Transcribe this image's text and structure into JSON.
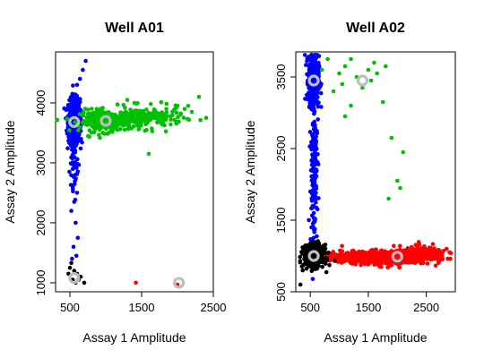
{
  "chart_data": [
    {
      "type": "scatter",
      "title": "Well A01",
      "xlabel": "Assay 1 Amplitude",
      "ylabel": "Assay 2 Amplitude",
      "xlim": [
        300,
        2500
      ],
      "ylim": [
        850,
        4850
      ],
      "xticks": [
        500,
        1500,
        2500
      ],
      "yticks": [
        1000,
        2000,
        3000,
        4000
      ],
      "grid": false,
      "series": [
        {
          "color": "#0000ff",
          "clusters": [
            {
              "cx": 560,
              "cy": 3700,
              "sx": 40,
              "sy": 180,
              "n": 900
            },
            {
              "cx": 560,
              "cy": 3300,
              "sx": 30,
              "sy": 350,
              "n": 70
            }
          ],
          "points": [
            [
              540,
              2600
            ],
            [
              600,
              2500
            ],
            [
              560,
              2350
            ],
            [
              520,
              2200
            ],
            [
              580,
              2000
            ],
            [
              610,
              1750
            ],
            [
              550,
              1600
            ],
            [
              590,
              1450
            ],
            [
              530,
              1400
            ],
            [
              720,
              4700
            ],
            [
              680,
              4550
            ],
            [
              640,
              4400
            ],
            [
              600,
              4300
            ],
            [
              575,
              2800
            ],
            [
              540,
              2900
            ]
          ]
        },
        {
          "color": "#00c000",
          "clusters": [
            {
              "cx": 1000,
              "cy": 3700,
              "sx": 180,
              "sy": 90,
              "n": 240
            },
            {
              "cx": 1550,
              "cy": 3750,
              "sx": 260,
              "sy": 90,
              "n": 180
            }
          ],
          "points": [
            [
              2000,
              3950
            ],
            [
              2100,
              3900
            ],
            [
              2200,
              3850
            ],
            [
              2300,
              4100
            ],
            [
              2400,
              3750
            ],
            [
              1600,
              3150
            ],
            [
              1300,
              4050
            ],
            [
              1400,
              4000
            ],
            [
              2150,
              3950
            ]
          ]
        },
        {
          "color": "#ff0000",
          "clusters": [],
          "points": [
            [
              1420,
              1000
            ],
            [
              2000,
              970
            ]
          ]
        },
        {
          "color": "#000000",
          "clusters": [],
          "points": [
            [
              520,
              1330
            ],
            [
              500,
              1250
            ],
            [
              560,
              1200
            ],
            [
              600,
              1150
            ],
            [
              650,
              1100
            ],
            [
              700,
              1000
            ],
            [
              480,
              1150
            ],
            [
              540,
              1050
            ],
            [
              580,
              1000
            ],
            [
              620,
              1050
            ]
          ]
        }
      ],
      "centroids": [
        [
          560,
          3680
        ],
        [
          1000,
          3700
        ],
        [
          560,
          1080
        ],
        [
          2020,
          1000
        ]
      ],
      "centroid_color": "#bebebe"
    },
    {
      "type": "scatter",
      "title": "Well A02",
      "xlabel": "Assay 1 Amplitude",
      "ylabel": "Assay 2 Amplitude",
      "xlim": [
        250,
        3000
      ],
      "ylim": [
        500,
        3850
      ],
      "xticks": [
        500,
        1500,
        2500
      ],
      "yticks": [
        500,
        1500,
        2500,
        3500
      ],
      "grid": false,
      "series": [
        {
          "color": "#0000ff",
          "clusters": [
            {
              "cx": 560,
              "cy": 3450,
              "sx": 45,
              "sy": 170,
              "n": 450
            },
            {
              "cx": 560,
              "cy": 2300,
              "sx": 30,
              "sy": 600,
              "n": 170
            }
          ],
          "points": [
            [
              520,
              1400
            ],
            [
              580,
              1500
            ],
            [
              560,
              1600
            ],
            [
              540,
              1700
            ],
            [
              600,
              1800
            ],
            [
              500,
              1900
            ]
          ]
        },
        {
          "color": "#00c000",
          "clusters": [],
          "points": [
            [
              700,
              3600
            ],
            [
              800,
              3750
            ],
            [
              900,
              3300
            ],
            [
              1000,
              3550
            ],
            [
              1050,
              3400
            ],
            [
              1100,
              3650
            ],
            [
              1200,
              3750
            ],
            [
              1300,
              3500
            ],
            [
              1400,
              3350
            ],
            [
              1500,
              3600
            ],
            [
              1550,
              3450
            ],
            [
              1600,
              3700
            ],
            [
              1650,
              3550
            ],
            [
              1800,
              3650
            ],
            [
              1900,
              2650
            ],
            [
              1850,
              1800
            ],
            [
              2000,
              2050
            ],
            [
              2050,
              1950
            ],
            [
              2100,
              2450
            ],
            [
              1750,
              3150
            ],
            [
              1100,
              2950
            ],
            [
              1200,
              3100
            ]
          ]
        },
        {
          "color": "#ff0000",
          "clusters": [
            {
              "cx": 1800,
              "cy": 980,
              "sx": 380,
              "sy": 45,
              "n": 700
            },
            {
              "cx": 2450,
              "cy": 1030,
              "sx": 200,
              "sy": 50,
              "n": 160
            },
            {
              "cx": 950,
              "cy": 980,
              "sx": 140,
              "sy": 30,
              "n": 120
            }
          ],
          "points": [
            [
              2850,
              1100
            ],
            [
              2750,
              1000
            ],
            [
              2900,
              1050
            ],
            [
              1700,
              850
            ],
            [
              1900,
              870
            ]
          ]
        },
        {
          "color": "#000000",
          "clusters": [
            {
              "cx": 560,
              "cy": 1000,
              "sx": 85,
              "sy": 75,
              "n": 420
            }
          ],
          "points": [
            [
              330,
              600
            ],
            [
              380,
              1100
            ],
            [
              720,
              950
            ],
            [
              750,
              1050
            ]
          ]
        }
      ],
      "centroids": [
        [
          560,
          3450
        ],
        [
          1400,
          3450
        ],
        [
          560,
          1000
        ],
        [
          2000,
          990
        ]
      ],
      "centroid_color": "#bebebe"
    }
  ]
}
